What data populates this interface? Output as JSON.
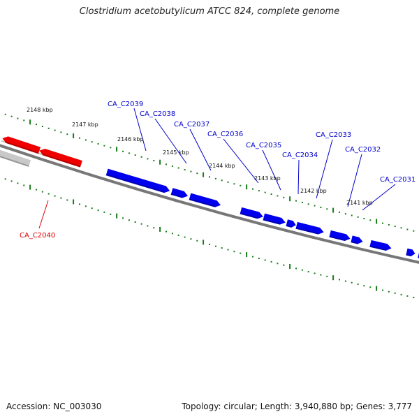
{
  "title": "Clostridium acetobutylicum ATCC 824, complete genome",
  "footer": {
    "accession": "Accession: NC_003030",
    "topology": "Topology: circular; Length: 3,940,880 bp; Genes: 3,777"
  },
  "colors": {
    "forward": "#0000ee",
    "reverse": "#ee0000",
    "backbone": "#777777",
    "ticks": "#1a7a1a",
    "grey_feature": "#c8c8c8"
  },
  "ruler_labels": [
    "2148 kbp",
    "2147 kbp",
    "2146 kbp",
    "2145 kbp",
    "2144 kbp",
    "2143 kbp",
    "2142 kbp",
    "2141 kbp"
  ],
  "genes": [
    {
      "id": "CA_C2031",
      "strand": "forward"
    },
    {
      "id": "CA_C2032",
      "strand": "forward"
    },
    {
      "id": "CA_C2033",
      "strand": "forward"
    },
    {
      "id": "CA_C2034",
      "strand": "forward"
    },
    {
      "id": "CA_C2035",
      "strand": "forward"
    },
    {
      "id": "CA_C2036",
      "strand": "forward"
    },
    {
      "id": "CA_C2037",
      "strand": "forward"
    },
    {
      "id": "CA_C2038",
      "strand": "forward"
    },
    {
      "id": "CA_C2039",
      "strand": "forward"
    },
    {
      "id": "CA_C2040",
      "strand": "reverse"
    }
  ]
}
